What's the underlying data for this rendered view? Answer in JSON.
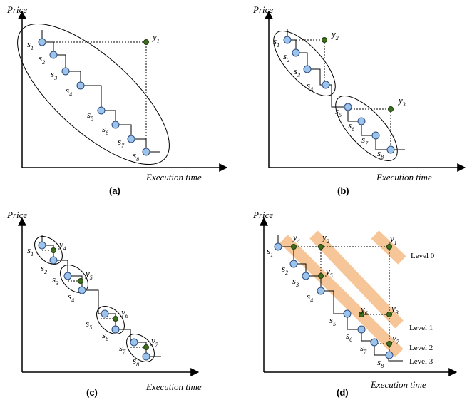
{
  "axes": {
    "ylabel": "Price",
    "xlabel": "Execution time"
  },
  "panels": [
    {
      "id": "a",
      "label": "(a)",
      "show_ylabel": true
    },
    {
      "id": "b",
      "label": "(b)",
      "show_ylabel": true
    },
    {
      "id": "c",
      "label": "(c)",
      "show_ylabel": true
    },
    {
      "id": "d",
      "label": "(d)",
      "show_ylabel": true
    }
  ],
  "symbols": {
    "s": "s",
    "y": "y"
  },
  "panel_a": {
    "s": [
      "1",
      "2",
      "3",
      "4",
      "5",
      "6",
      "7",
      "8"
    ],
    "y": [
      "1"
    ]
  },
  "panel_b": {
    "s": [
      "1",
      "2",
      "3",
      "4",
      "5",
      "6",
      "7",
      "8"
    ],
    "y": [
      "2",
      "3"
    ]
  },
  "panel_c": {
    "s": [
      "1",
      "2",
      "3",
      "4",
      "5",
      "6",
      "7",
      "8"
    ],
    "y": [
      "4",
      "5",
      "6",
      "7"
    ]
  },
  "panel_d": {
    "s": [
      "1",
      "2",
      "3",
      "4",
      "5",
      "6",
      "7",
      "8"
    ],
    "y": [
      "1",
      "2",
      "3",
      "4",
      "5",
      "6",
      "7"
    ],
    "levels": [
      "Level 0",
      "Level 1",
      "Level 2",
      "Level 3"
    ]
  },
  "colors": {
    "blue_node": "#9cc3ec",
    "green_node": "#3d6f1d",
    "band": "#f6c08d"
  }
}
